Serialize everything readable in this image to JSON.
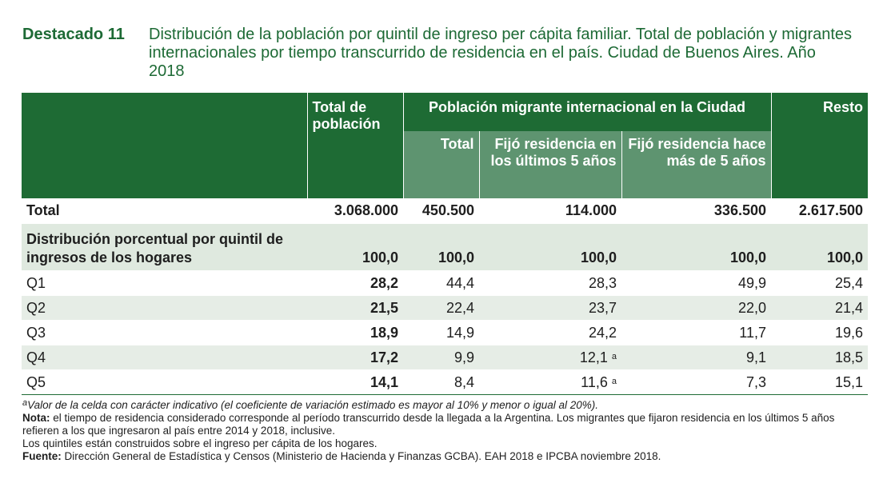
{
  "header": {
    "label": "Destacado 11",
    "title": "Distribución de la población por quintil de ingreso per cápita familiar. Total de población y migrantes internacionales por tiempo transcurrido de residencia en el país. Ciudad de Buenos Aires. Año 2018"
  },
  "table": {
    "col_total_poblacion": "Total de población",
    "col_migrante": "Población migrante internacional en la Ciudad",
    "col_resto": "Resto",
    "sub_total": "Total",
    "sub_ultimos": "Fijó residencia en los últimos 5 años",
    "sub_hace": "Fijó residencia hace más de 5 años",
    "total_row": {
      "label": "Total",
      "v1": "3.068.000",
      "v2": "450.500",
      "v3": "114.000",
      "v4": "336.500",
      "v5": "2.617.500"
    },
    "dist_row": {
      "label": "Distribución porcentual por quintil de ingresos de los hogares",
      "v1": "100,0",
      "v2": "100,0",
      "v3": "100,0",
      "v4": "100,0",
      "v5": "100,0"
    },
    "rows": [
      {
        "label": "Q1",
        "v1": "28,2",
        "v2": "44,4",
        "v3": "28,3",
        "v3_note": "",
        "v4": "49,9",
        "v5": "25,4"
      },
      {
        "label": "Q2",
        "v1": "21,5",
        "v2": "22,4",
        "v3": "23,7",
        "v3_note": "",
        "v4": "22,0",
        "v5": "21,4"
      },
      {
        "label": "Q3",
        "v1": "18,9",
        "v2": "14,9",
        "v3": "24,2",
        "v3_note": "",
        "v4": "11,7",
        "v5": "19,6"
      },
      {
        "label": "Q4",
        "v1": "17,2",
        "v2": "9,9",
        "v3": "12,1",
        "v3_note": "a",
        "v4": "9,1",
        "v5": "18,5"
      },
      {
        "label": "Q5",
        "v1": "14,1",
        "v2": "8,4",
        "v3": "11,6",
        "v3_note": "a",
        "v4": "7,3",
        "v5": "15,1"
      }
    ]
  },
  "notes": {
    "a_marker": "a",
    "a_text": "Valor de la celda con carácter indicativo (el coeficiente de variación estimado es mayor al 10% y menor o igual al 20%).",
    "nota_label": "Nota:",
    "nota_text": "el tiempo de residencia considerado corresponde al período transcurrido desde la llegada a la Argentina. Los migrantes que fijaron residencia en los últimos 5 años refieren a los que ingresaron al país entre 2014 y 2018, inclusive.",
    "quintiles_text": "Los quintiles están construidos sobre el ingreso per cápita de los hogares.",
    "fuente_label": "Fuente:",
    "fuente_text": "Dirección General de Estadística y Censos (Ministerio de Hacienda y Finanzas GCBA). EAH 2018 e IPCBA noviembre 2018."
  }
}
